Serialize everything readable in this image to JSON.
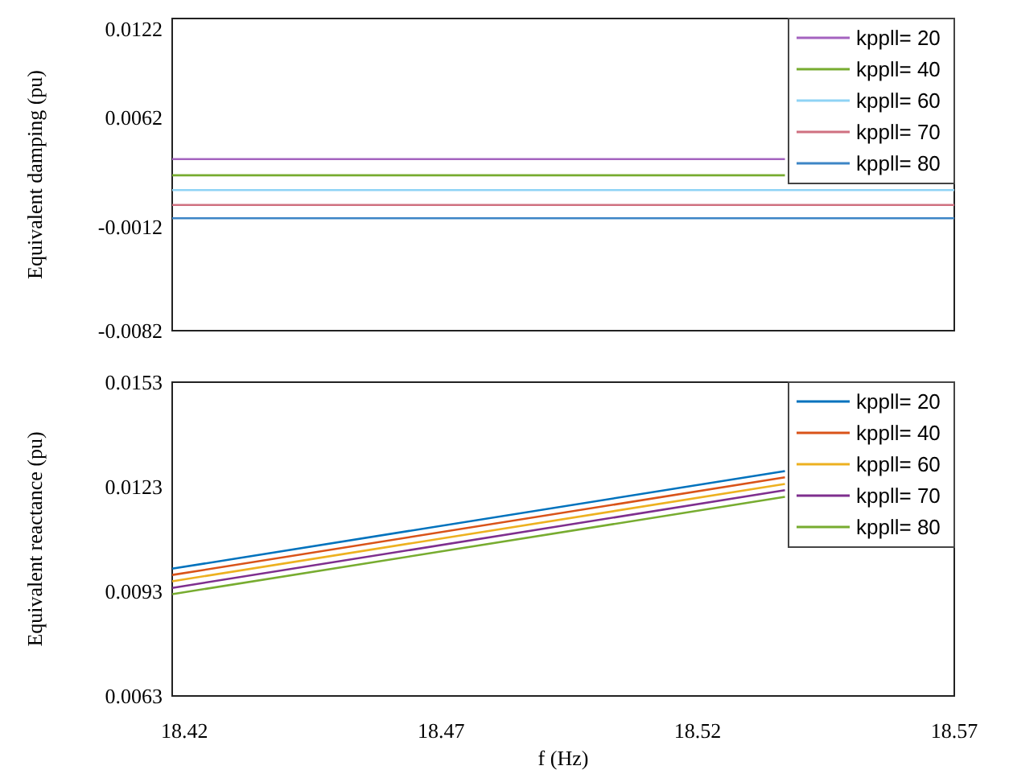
{
  "chart_data": [
    {
      "type": "line",
      "ylabel": "Equivalent damping  (pu)",
      "xlim": [
        18.4176,
        18.57
      ],
      "xticks": [
        18.42,
        18.47,
        18.52,
        18.57
      ],
      "ylim": [
        -0.0082,
        0.0129
      ],
      "yticks": [
        0.0122,
        0.0062,
        -0.0012,
        -0.0082
      ],
      "tick_labels": "y",
      "legend": "top right",
      "grid": false,
      "marker": "none",
      "line_style": "solid",
      "series": [
        {
          "name": "kppll= 20",
          "color": "#a463bf",
          "x": [
            18.4176,
            18.537
          ],
          "values": [
            0.0034,
            0.0034
          ]
        },
        {
          "name": "kppll= 40",
          "color": "#77ac30",
          "x": [
            18.4176,
            18.537
          ],
          "values": [
            0.0023,
            0.0023
          ]
        },
        {
          "name": "kppll= 60",
          "color": "#8fd3f5",
          "x": [
            18.4176,
            18.57
          ],
          "values": [
            0.0013,
            0.0013
          ]
        },
        {
          "name": "kppll= 70",
          "color": "#d07080",
          "x": [
            18.4176,
            18.57
          ],
          "values": [
            0.0003,
            0.0003
          ]
        },
        {
          "name": "kppll= 80",
          "color": "#3d85c6",
          "x": [
            18.4176,
            18.57
          ],
          "values": [
            -0.0006,
            -0.0006
          ]
        }
      ]
    },
    {
      "type": "line",
      "xlabel": "f (Hz)",
      "ylabel": "Equivalent reactance  (pu)",
      "xlim": [
        18.4176,
        18.57
      ],
      "xticks": [
        18.42,
        18.47,
        18.52,
        18.57
      ],
      "ylim": [
        0.0063,
        0.0153
      ],
      "yticks": [
        0.0153,
        0.0123,
        0.0093,
        0.0063
      ],
      "legend": "top right",
      "grid": false,
      "marker": "none",
      "line_style": "solid",
      "series": [
        {
          "name": "kppll= 20",
          "color": "#0072bd",
          "x": [
            18.4176,
            18.537
          ],
          "values": [
            0.00995,
            0.01275
          ]
        },
        {
          "name": "kppll= 40",
          "color": "#d95319",
          "x": [
            18.4176,
            18.537
          ],
          "values": [
            0.00977,
            0.01257
          ]
        },
        {
          "name": "kppll= 60",
          "color": "#edb120",
          "x": [
            18.4176,
            18.537
          ],
          "values": [
            0.00959,
            0.01238
          ]
        },
        {
          "name": "kppll= 70",
          "color": "#7e2f8e",
          "x": [
            18.4176,
            18.537
          ],
          "values": [
            0.0094,
            0.0122
          ]
        },
        {
          "name": "kppll= 80",
          "color": "#77ac30",
          "x": [
            18.4176,
            18.537
          ],
          "values": [
            0.00922,
            0.01201
          ]
        }
      ]
    }
  ]
}
